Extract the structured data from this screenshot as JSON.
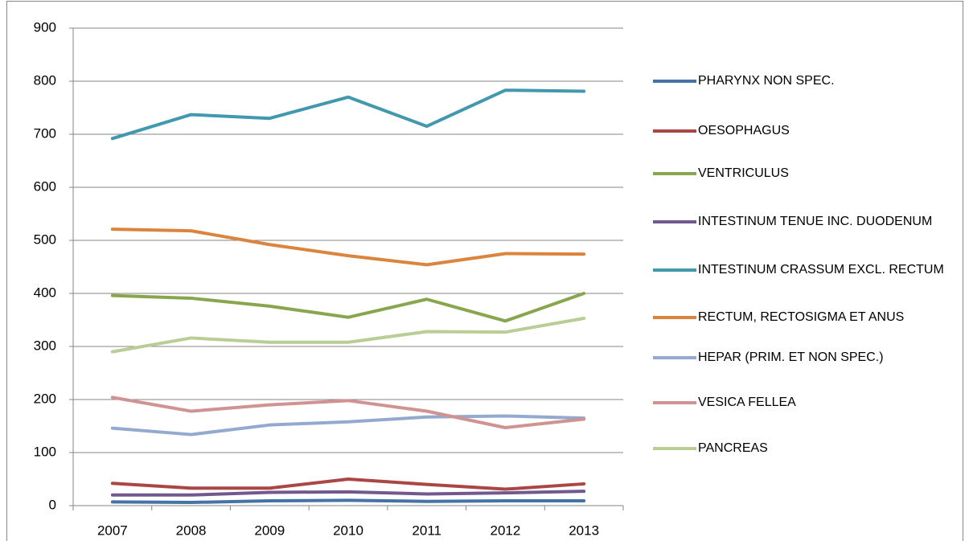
{
  "chart_data": {
    "type": "line",
    "categories": [
      "2007",
      "2008",
      "2009",
      "2010",
      "2011",
      "2012",
      "2013"
    ],
    "series": [
      {
        "name": "PHARYNX NON SPEC.",
        "color": "#4572a7",
        "values": [
          7,
          6,
          9,
          10,
          8,
          9,
          9
        ]
      },
      {
        "name": "OESOPHAGUS",
        "color": "#aa4643",
        "values": [
          42,
          33,
          33,
          50,
          40,
          31,
          41
        ]
      },
      {
        "name": "VENTRICULUS",
        "color": "#89a54e",
        "values": [
          396,
          391,
          376,
          355,
          389,
          348,
          400
        ]
      },
      {
        "name": "INTESTINUM TENUE INC. DUODENUM",
        "color": "#71588f",
        "values": [
          20,
          20,
          25,
          26,
          22,
          24,
          27
        ]
      },
      {
        "name": "INTESTINUM CRASSUM EXCL. RECTUM",
        "color": "#4198af",
        "values": [
          692,
          737,
          730,
          770,
          715,
          783,
          781
        ]
      },
      {
        "name": "RECTUM, RECTOSIGMA ET ANUS",
        "color": "#db843d",
        "values": [
          521,
          518,
          492,
          471,
          454,
          475,
          474
        ]
      },
      {
        "name": "HEPAR (PRIM. ET NON SPEC.)",
        "color": "#93a9cf",
        "values": [
          146,
          134,
          152,
          158,
          167,
          169,
          165
        ]
      },
      {
        "name": "VESICA FELLEA",
        "color": "#d19392",
        "values": [
          204,
          178,
          190,
          198,
          178,
          147,
          163
        ]
      },
      {
        "name": "PANCREAS",
        "color": "#b9cd96",
        "values": [
          290,
          316,
          308,
          308,
          328,
          327,
          353
        ]
      }
    ],
    "ylim": [
      0,
      900
    ],
    "yticks": [
      0,
      100,
      200,
      300,
      400,
      500,
      600,
      700,
      800,
      900
    ],
    "grid": true,
    "legend": "right"
  }
}
